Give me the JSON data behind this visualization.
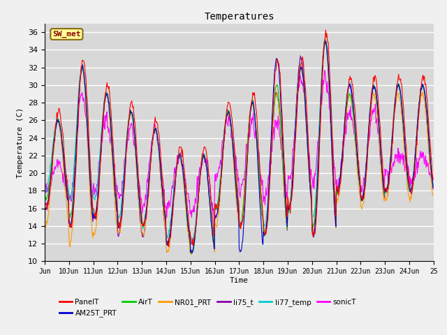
{
  "title": "Temperatures",
  "xlabel": "Time",
  "ylabel": "Temperature (C)",
  "ylim": [
    10,
    37
  ],
  "yticks": [
    10,
    12,
    14,
    16,
    18,
    20,
    22,
    24,
    26,
    28,
    30,
    32,
    34,
    36
  ],
  "annotation_text": "SW_met",
  "annotation_color": "#8B0000",
  "annotation_bg": "#FFFF99",
  "annotation_border": "#8B6914",
  "series_colors": {
    "PanelT": "#FF0000",
    "AM25T_PRT": "#0000CC",
    "AirT": "#00CC00",
    "NR01_PRT": "#FF9900",
    "li75_t": "#8800AA",
    "li77_temp": "#00CCCC",
    "sonicT": "#FF00FF"
  },
  "series_order": [
    "sonicT",
    "li77_temp",
    "li75_t",
    "NR01_PRT",
    "AirT",
    "AM25T_PRT",
    "PanelT"
  ],
  "legend_order": [
    "PanelT",
    "AM25T_PRT",
    "AirT",
    "NR01_PRT",
    "li75_t",
    "li77_temp",
    "sonicT"
  ],
  "xlim_start": 9,
  "xlim_end": 25,
  "tick_start": 9,
  "tick_end": 25,
  "plot_bg": "#D8D8D8",
  "fig_bg": "#F0F0F0",
  "grid_color": "#FFFFFF"
}
